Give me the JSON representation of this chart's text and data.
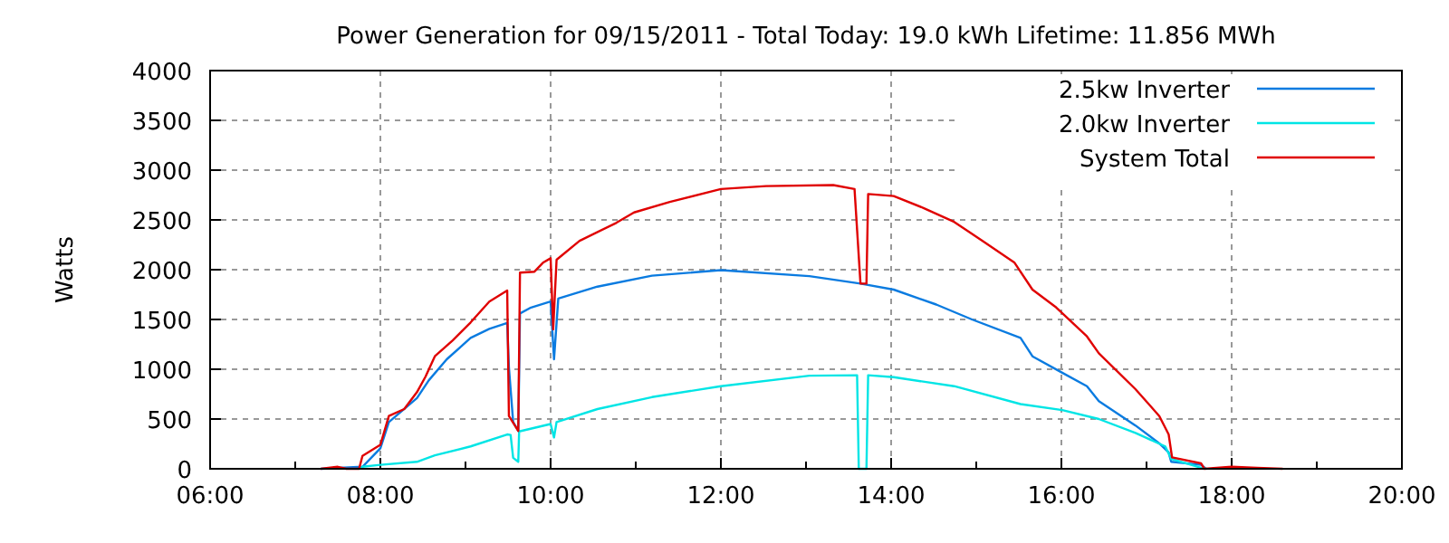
{
  "chart_data": {
    "type": "line",
    "title": "Power Generation for 09/15/2011 - Total Today: 19.0 kWh   Lifetime: 11.856 MWh",
    "ylabel": "Watts",
    "xlim": [
      6,
      20
    ],
    "ylim": [
      0,
      4000
    ],
    "xticks": [
      {
        "value": 6,
        "label": "06:00"
      },
      {
        "value": 7,
        "label": null
      },
      {
        "value": 8,
        "label": "08:00"
      },
      {
        "value": 9,
        "label": null
      },
      {
        "value": 10,
        "label": "10:00"
      },
      {
        "value": 11,
        "label": null
      },
      {
        "value": 12,
        "label": "12:00"
      },
      {
        "value": 13,
        "label": null
      },
      {
        "value": 14,
        "label": "14:00"
      },
      {
        "value": 15,
        "label": null
      },
      {
        "value": 16,
        "label": "16:00"
      },
      {
        "value": 17,
        "label": null
      },
      {
        "value": 18,
        "label": "18:00"
      },
      {
        "value": 19,
        "label": null
      },
      {
        "value": 20,
        "label": "20:00"
      }
    ],
    "yticks": [
      0,
      500,
      1000,
      1500,
      2000,
      2500,
      3000,
      3500,
      4000
    ],
    "grid": true,
    "legend": "top right",
    "line_style": "solid",
    "marker": "none",
    "series": [
      {
        "name": "2.5kw Inverter",
        "color": "#0a7be0",
        "x": [
          7.3,
          7.79,
          8.0,
          8.1,
          8.43,
          8.57,
          8.78,
          9.06,
          9.28,
          9.49,
          9.51,
          9.56,
          9.62,
          9.64,
          9.77,
          10.0,
          10.04,
          10.09,
          10.55,
          11.19,
          12.0,
          13.04,
          13.64,
          14.03,
          14.53,
          14.95,
          15.52,
          15.66,
          16.01,
          16.3,
          16.44,
          16.87,
          17.15,
          17.26,
          17.29,
          17.64,
          17.7
        ],
        "values": [
          0,
          20,
          205,
          470,
          710,
          890,
          1100,
          1315,
          1405,
          1465,
          1020,
          470,
          380,
          1560,
          1620,
          1680,
          1100,
          1710,
          1830,
          1940,
          1995,
          1935,
          1860,
          1800,
          1650,
          1500,
          1315,
          1130,
          965,
          830,
          680,
          435,
          255,
          165,
          70,
          40,
          0
        ]
      },
      {
        "name": "2.0kw Inverter",
        "color": "#00e5e5",
        "x": [
          7.75,
          7.79,
          8.0,
          8.43,
          8.64,
          9.06,
          9.49,
          9.53,
          9.56,
          9.62,
          9.63,
          10.0,
          10.04,
          10.07,
          10.55,
          11.19,
          12.0,
          13.04,
          13.6,
          13.62,
          13.64,
          13.71,
          13.73,
          14.03,
          14.74,
          15.52,
          16.01,
          16.44,
          16.87,
          17.22,
          17.29,
          17.64,
          17.7
        ],
        "values": [
          0,
          20,
          40,
          70,
          135,
          225,
          345,
          340,
          110,
          70,
          375,
          450,
          315,
          470,
          600,
          720,
          830,
          935,
          940,
          0,
          0,
          0,
          940,
          920,
          830,
          650,
          590,
          500,
          360,
          225,
          100,
          10,
          0
        ]
      },
      {
        "name": "System Total",
        "color": "#e00000",
        "x": [
          7.3,
          7.5,
          7.6,
          7.75,
          7.79,
          8.0,
          8.1,
          8.28,
          8.43,
          8.53,
          8.64,
          8.85,
          9.06,
          9.28,
          9.49,
          9.51,
          9.62,
          9.64,
          9.81,
          9.91,
          10.0,
          10.03,
          10.07,
          10.34,
          10.77,
          10.98,
          11.4,
          12.0,
          12.53,
          13.32,
          13.57,
          13.64,
          13.71,
          13.73,
          14.03,
          14.38,
          14.74,
          15.09,
          15.45,
          15.66,
          15.94,
          16.3,
          16.44,
          16.87,
          17.15,
          17.26,
          17.3,
          17.64,
          17.68,
          18.0,
          18.3,
          18.6
        ],
        "values": [
          0,
          20,
          0,
          0,
          130,
          240,
          530,
          600,
          770,
          925,
          1130,
          1290,
          1470,
          1680,
          1790,
          530,
          380,
          1970,
          1980,
          2070,
          2115,
          1400,
          2100,
          2290,
          2470,
          2575,
          2680,
          2810,
          2840,
          2850,
          2810,
          1860,
          1860,
          2760,
          2740,
          2620,
          2480,
          2280,
          2070,
          1800,
          1620,
          1330,
          1160,
          800,
          530,
          345,
          115,
          55,
          0,
          20,
          10,
          0
        ]
      }
    ]
  }
}
